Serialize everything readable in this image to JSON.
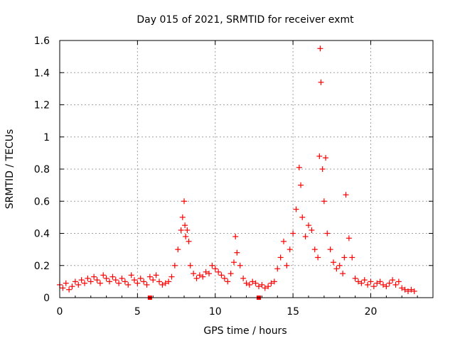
{
  "chart_data": {
    "type": "scatter",
    "title": "Day 015 of 2021, SRMTID for receiver exmt",
    "xlabel": "GPS time / hours",
    "ylabel": "SRMTID / TECUs",
    "xlim": [
      0,
      24
    ],
    "ylim": [
      0,
      1.6
    ],
    "xticks": [
      0,
      5,
      10,
      15,
      20
    ],
    "xtick_labels": [
      "0",
      "5",
      "10",
      "15",
      "20"
    ],
    "yticks": [
      0,
      0.2,
      0.4,
      0.6,
      0.8,
      1,
      1.2,
      1.4,
      1.6
    ],
    "ytick_labels": [
      "0",
      "0.2",
      "0.4",
      "0.6",
      "0.8",
      "1",
      "1.2",
      "1.4",
      "1.6"
    ],
    "grid": true,
    "marker": "+",
    "color": "#ff0000",
    "series": [
      {
        "name": "SRMTID",
        "x": [
          0.0,
          0.2,
          0.4,
          0.6,
          0.8,
          1.0,
          1.2,
          1.4,
          1.6,
          1.8,
          2.0,
          2.2,
          2.4,
          2.6,
          2.8,
          3.0,
          3.2,
          3.4,
          3.6,
          3.8,
          4.0,
          4.2,
          4.4,
          4.6,
          4.8,
          5.0,
          5.2,
          5.4,
          5.6,
          5.8,
          6.0,
          6.2,
          6.4,
          6.6,
          6.8,
          7.0,
          7.2,
          7.4,
          7.6,
          7.8,
          7.9,
          8.0,
          8.05,
          8.1,
          8.2,
          8.3,
          8.4,
          8.6,
          8.8,
          9.0,
          9.2,
          9.4,
          9.6,
          9.8,
          10.0,
          10.2,
          10.4,
          10.6,
          10.8,
          11.0,
          11.2,
          11.3,
          11.4,
          11.6,
          11.8,
          12.0,
          12.2,
          12.4,
          12.6,
          12.8,
          13.0,
          13.2,
          13.4,
          13.6,
          13.8,
          14.0,
          14.2,
          14.4,
          14.6,
          14.8,
          15.0,
          15.2,
          15.4,
          15.5,
          15.6,
          15.8,
          16.0,
          16.2,
          16.4,
          16.6,
          16.7,
          16.75,
          16.8,
          16.9,
          17.0,
          17.1,
          17.2,
          17.4,
          17.6,
          17.8,
          18.0,
          18.2,
          18.3,
          18.4,
          18.6,
          18.8,
          19.0,
          19.2,
          19.4,
          19.6,
          19.8,
          20.0,
          20.2,
          20.4,
          20.6,
          20.8,
          21.0,
          21.2,
          21.4,
          21.6,
          21.8,
          22.0,
          22.2,
          22.4,
          22.6,
          22.8
        ],
        "y": [
          0.08,
          0.06,
          0.09,
          0.05,
          0.07,
          0.1,
          0.08,
          0.11,
          0.09,
          0.12,
          0.1,
          0.13,
          0.11,
          0.09,
          0.14,
          0.12,
          0.1,
          0.13,
          0.11,
          0.09,
          0.12,
          0.1,
          0.08,
          0.14,
          0.11,
          0.09,
          0.12,
          0.1,
          0.08,
          0.13,
          0.11,
          0.14,
          0.1,
          0.08,
          0.09,
          0.1,
          0.13,
          0.2,
          0.3,
          0.42,
          0.5,
          0.6,
          0.45,
          0.38,
          0.42,
          0.35,
          0.2,
          0.15,
          0.12,
          0.14,
          0.13,
          0.16,
          0.15,
          0.2,
          0.18,
          0.16,
          0.14,
          0.12,
          0.1,
          0.15,
          0.22,
          0.38,
          0.28,
          0.2,
          0.12,
          0.09,
          0.08,
          0.1,
          0.09,
          0.07,
          0.08,
          0.06,
          0.07,
          0.09,
          0.1,
          0.18,
          0.25,
          0.35,
          0.2,
          0.3,
          0.4,
          0.55,
          0.81,
          0.7,
          0.5,
          0.38,
          0.45,
          0.42,
          0.3,
          0.25,
          0.88,
          1.55,
          1.34,
          0.8,
          0.6,
          0.87,
          0.4,
          0.3,
          0.22,
          0.18,
          0.2,
          0.15,
          0.25,
          0.64,
          0.37,
          0.25,
          0.12,
          0.1,
          0.09,
          0.11,
          0.08,
          0.1,
          0.07,
          0.09,
          0.1,
          0.08,
          0.07,
          0.09,
          0.11,
          0.08,
          0.1,
          0.06,
          0.05,
          0.04,
          0.05,
          0.04
        ]
      }
    ],
    "extra_points": [
      {
        "x": 5.8,
        "y": 0.0
      },
      {
        "x": 12.8,
        "y": 0.0
      }
    ]
  }
}
